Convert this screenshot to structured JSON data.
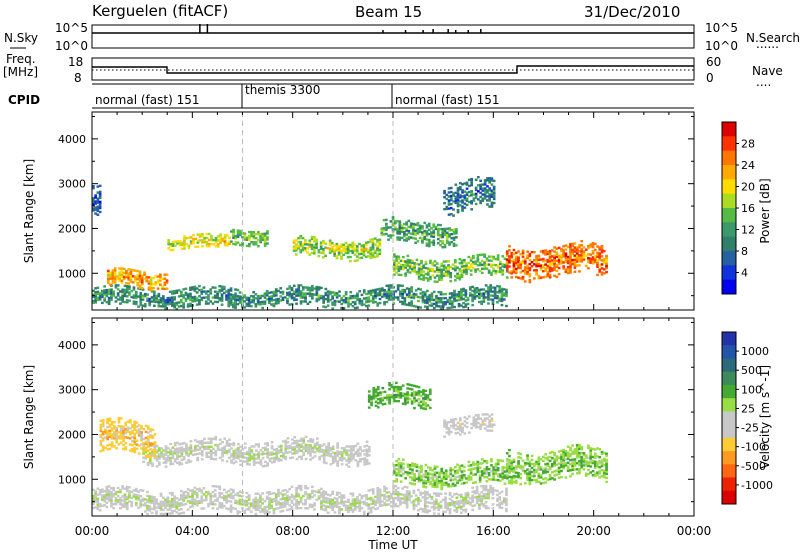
{
  "header": {
    "station": "Kerguelen (fitACF)",
    "beam": "Beam 15",
    "date": "31/Dec/2010"
  },
  "strip_labels": {
    "nsky": "N.Sky",
    "freq_line1": "Freq.",
    "freq_line2": "[MHz]",
    "cpid": "CPID",
    "nsearch": "N.Search",
    "nave": "Nave",
    "dotted": "......",
    "dotted_short": "....",
    "nsky_ticks": [
      "10^5",
      "10^0"
    ],
    "nsearch_ticks": [
      "10^5",
      "10^0"
    ],
    "freq_ticks": [
      "18",
      "8"
    ],
    "nave_ticks": [
      "60",
      "0"
    ]
  },
  "cpid_segments": [
    {
      "label": "normal (fast) 151",
      "start_hour": 0,
      "end_hour": 6
    },
    {
      "label": "themis 3300",
      "start_hour": 6,
      "end_hour": 12
    },
    {
      "label": "normal (fast) 151",
      "start_hour": 12,
      "end_hour": 24
    }
  ],
  "axis": {
    "xlabel": "Time UT",
    "x_ticks": [
      "00:00",
      "04:00",
      "08:00",
      "12:00",
      "16:00",
      "20:00",
      "00:00"
    ],
    "xlim_hours": [
      0,
      24
    ],
    "ylabel": "Slant Range [km]",
    "ylim_km": [
      180,
      4600
    ],
    "y_ticks": [
      "1000",
      "2000",
      "3000",
      "4000"
    ]
  },
  "colorbars": {
    "power": {
      "label": "Power [dB]",
      "tick_labels": [
        "28",
        "24",
        "20",
        "16",
        "12",
        "8",
        "4"
      ],
      "colors": [
        "#dd0000",
        "#ff3300",
        "#ff7700",
        "#ffaa00",
        "#ffdd00",
        "#aadd22",
        "#55bb44",
        "#3c9a6a",
        "#2f7f6a",
        "#2560a0",
        "#1133dd",
        "#0000ee"
      ]
    },
    "velocity": {
      "label": "Velocity [m s^-1]",
      "tick_labels": [
        "1000",
        "500",
        "100",
        "25",
        "-25",
        "-100",
        "-500",
        "-1000"
      ],
      "colors": [
        "#2233aa",
        "#2255aa",
        "#2a6a7a",
        "#3c8a5a",
        "#44aa33",
        "#99dd44",
        "#c8c8c8",
        "#c8c8c8",
        "#ffcc33",
        "#ff9922",
        "#ff6611",
        "#ee2200",
        "#dd0000"
      ]
    }
  },
  "chart_data": [
    {
      "type": "heatmap",
      "title": "Power [dB]",
      "xlabel": "Time UT",
      "ylabel": "Slant Range [km]",
      "xlim": [
        0,
        24
      ],
      "ylim": [
        180,
        4600
      ],
      "colorbar_range": [
        0,
        30
      ],
      "echo_bands": [
        {
          "t_start": 0.0,
          "t_end": 16.5,
          "range_center_km": 450,
          "half_width_km": 220,
          "power_db": 10
        },
        {
          "t_start": 0.6,
          "t_end": 3.0,
          "range_center_km": 860,
          "half_width_km": 200,
          "power_db": 22
        },
        {
          "t_start": 3.0,
          "t_end": 5.5,
          "range_center_km": 1680,
          "half_width_km": 140,
          "power_db": 18
        },
        {
          "t_start": 5.5,
          "t_end": 7.0,
          "range_center_km": 1800,
          "half_width_km": 160,
          "power_db": 14
        },
        {
          "t_start": 8.0,
          "t_end": 11.5,
          "range_center_km": 1550,
          "half_width_km": 220,
          "power_db": 16
        },
        {
          "t_start": 11.5,
          "t_end": 14.5,
          "range_center_km": 1900,
          "half_width_km": 250,
          "power_db": 12
        },
        {
          "t_start": 12.0,
          "t_end": 16.5,
          "range_center_km": 1100,
          "half_width_km": 230,
          "power_db": 14
        },
        {
          "t_start": 16.5,
          "t_end": 20.5,
          "range_center_km": 1250,
          "half_width_km": 350,
          "power_db": 24
        },
        {
          "t_start": 14.0,
          "t_end": 16.0,
          "range_center_km": 2700,
          "half_width_km": 350,
          "power_db": 8
        },
        {
          "t_start": 0.0,
          "t_end": 0.3,
          "range_center_km": 2600,
          "half_width_km": 350,
          "power_db": 6
        }
      ]
    },
    {
      "type": "heatmap",
      "title": "Velocity [m s^-1]",
      "xlabel": "Time UT",
      "ylabel": "Slant Range [km]",
      "xlim": [
        0,
        24
      ],
      "ylim": [
        180,
        4600
      ],
      "colorbar_range": [
        -1000,
        1000
      ],
      "echo_bands": [
        {
          "t_start": 0.0,
          "t_end": 16.5,
          "range_center_km": 500,
          "half_width_km": 250,
          "velocity": 0
        },
        {
          "t_start": 2.0,
          "t_end": 11.0,
          "range_center_km": 1600,
          "half_width_km": 250,
          "velocity": 0
        },
        {
          "t_start": 0.3,
          "t_end": 2.5,
          "range_center_km": 1900,
          "half_width_km": 350,
          "velocity": -300
        },
        {
          "t_start": 12.0,
          "t_end": 17.0,
          "range_center_km": 1100,
          "half_width_km": 250,
          "velocity": 200
        },
        {
          "t_start": 16.5,
          "t_end": 20.5,
          "range_center_km": 1300,
          "half_width_km": 350,
          "velocity": 200
        },
        {
          "t_start": 14.0,
          "t_end": 16.0,
          "range_center_km": 2200,
          "half_width_km": 200,
          "velocity": -100
        },
        {
          "t_start": 11.0,
          "t_end": 13.5,
          "range_center_km": 2800,
          "half_width_km": 250,
          "velocity": 300
        }
      ]
    }
  ]
}
